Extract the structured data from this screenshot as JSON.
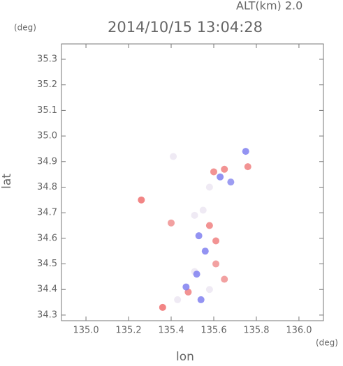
{
  "chart_data": {
    "type": "scatter",
    "title": "2014/10/15 13:04:28",
    "subtitle": "ALT(km) 2.0",
    "y_unit": "(deg)",
    "x_unit": "(deg)",
    "x_label": "lon",
    "y_label": "lat",
    "xlim": [
      134.885,
      136.115
    ],
    "ylim": [
      34.278,
      35.36
    ],
    "xticks": [
      {
        "value": 135.0,
        "label": "135.0"
      },
      135.2,
      135.4,
      135.6,
      135.8,
      {
        "value": 136.0,
        "label": "136.0"
      }
    ],
    "yticks": [
      34.3,
      34.4,
      34.5,
      34.6,
      34.7,
      34.8,
      34.9,
      {
        "value": 35.0,
        "label": "35.0"
      },
      35.1,
      35.2,
      35.3
    ],
    "x": [
      135.36,
      135.41,
      135.6,
      135.65,
      135.63,
      135.68,
      135.58,
      135.75,
      135.76,
      135.26,
      135.4,
      135.55,
      135.58,
      135.53,
      135.61,
      135.51,
      135.56,
      135.51,
      135.61,
      135.52,
      135.58,
      135.48,
      135.54,
      135.43,
      135.65,
      135.47
    ],
    "values": [
      34.33,
      34.92,
      34.86,
      34.87,
      34.84,
      34.82,
      34.8,
      34.94,
      34.88,
      34.75,
      34.66,
      34.71,
      34.65,
      34.61,
      34.59,
      34.69,
      34.55,
      34.47,
      34.5,
      34.46,
      34.4,
      34.39,
      34.36,
      34.36,
      34.44,
      34.41
    ],
    "colors": [
      "#f07070",
      "#ece6f2",
      "#f08080",
      "#f08080",
      "#8080f0",
      "#8c8cf0",
      "#ece6f2",
      "#8080f0",
      "#f08080",
      "#f07070",
      "#f09090",
      "#ece6f2",
      "#f08080",
      "#8080f0",
      "#f08080",
      "#ece6f2",
      "#8080f0",
      "#ece6f2",
      "#f09090",
      "#8080f0",
      "#ece6f2",
      "#f08080",
      "#8080f0",
      "#ece6f2",
      "#f09090",
      "#8080f0"
    ]
  }
}
